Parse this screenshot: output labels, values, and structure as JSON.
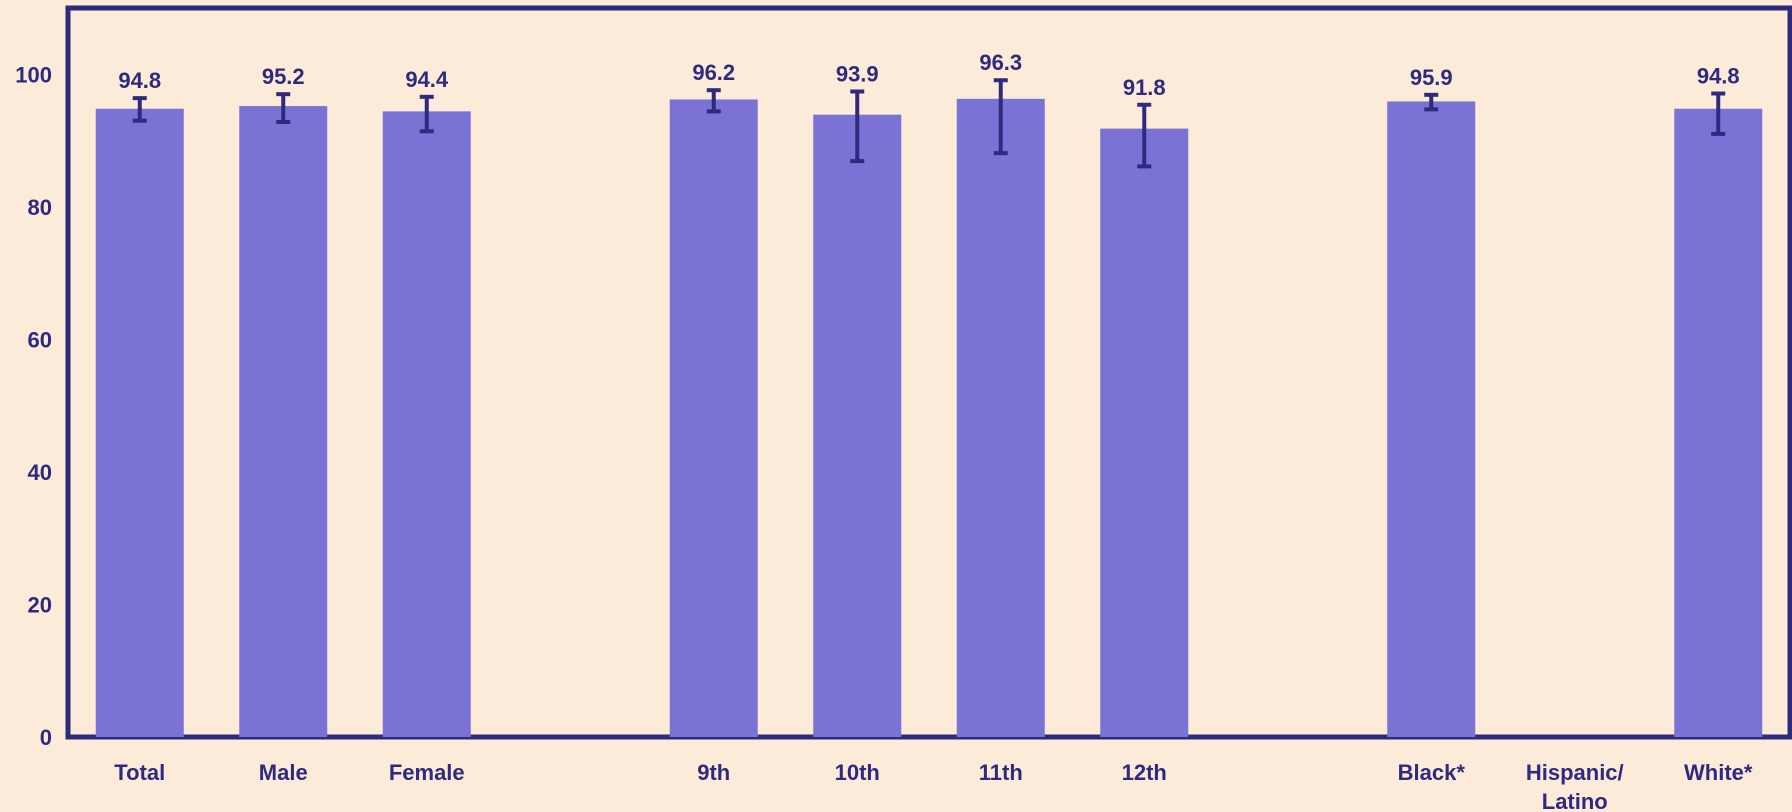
{
  "chart_data": {
    "type": "bar",
    "title": "",
    "xlabel": "",
    "ylabel": "",
    "ylim": [
      0,
      110
    ],
    "yticks": [
      0,
      20,
      40,
      60,
      80,
      100
    ],
    "grid": false,
    "categories": [
      {
        "label": [
          "Total"
        ],
        "value": 94.8,
        "err_low": 93.0,
        "err_high": 96.4
      },
      {
        "label": [
          "Male"
        ],
        "value": 95.2,
        "err_low": 92.8,
        "err_high": 97.0
      },
      {
        "label": [
          "Female"
        ],
        "value": 94.4,
        "err_low": 91.4,
        "err_high": 96.6
      },
      {
        "label": [
          ""
        ],
        "value": null
      },
      {
        "label": [
          "9th"
        ],
        "value": 96.2,
        "err_low": 94.4,
        "err_high": 97.6
      },
      {
        "label": [
          "10th"
        ],
        "value": 93.9,
        "err_low": 86.9,
        "err_high": 97.4
      },
      {
        "label": [
          "11th"
        ],
        "value": 96.3,
        "err_low": 88.1,
        "err_high": 99.1
      },
      {
        "label": [
          "12th"
        ],
        "value": 91.8,
        "err_low": 86.1,
        "err_high": 95.4
      },
      {
        "label": [
          ""
        ],
        "value": null
      },
      {
        "label": [
          "Black*"
        ],
        "value": 95.9,
        "err_low": 94.7,
        "err_high": 96.9
      },
      {
        "label": [
          "Hispanic/",
          "Latino"
        ],
        "value": null
      },
      {
        "label": [
          "White*"
        ],
        "value": 94.8,
        "err_low": 91.0,
        "err_high": 97.1
      }
    ],
    "colors": {
      "bar": "#7a72d5",
      "axis": "#2e2a7e",
      "text": "#2e2a7e",
      "background": "#fcebd9"
    }
  }
}
